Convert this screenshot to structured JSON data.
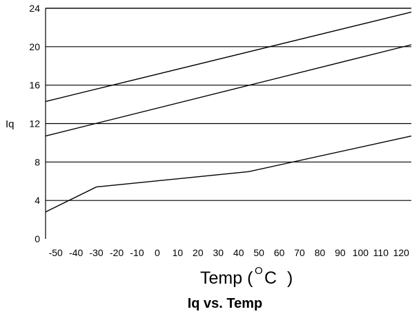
{
  "chart_data": {
    "type": "line",
    "title": "Iq vs. Temp",
    "xlabel": "Temp ( °C )",
    "ylabel": "Iq",
    "xlim": [
      -55,
      125
    ],
    "ylim": [
      0,
      24
    ],
    "x_ticks": [
      "-50",
      "-40",
      "-30",
      "-20",
      "-10",
      "0",
      "10",
      "20",
      "30",
      "40",
      "50",
      "60",
      "70",
      "80",
      "90",
      "100",
      "110",
      "120"
    ],
    "y_ticks": [
      "0",
      "4",
      "8",
      "12",
      "16",
      "20",
      "24"
    ],
    "grid": "horizontal",
    "series": [
      {
        "x": [
          -55,
          125
        ],
        "y": [
          14.3,
          23.6
        ]
      },
      {
        "x": [
          -55,
          125
        ],
        "y": [
          10.7,
          20.2
        ]
      },
      {
        "x": [
          -55,
          -30,
          45,
          125
        ],
        "y": [
          2.8,
          5.4,
          7.0,
          10.7
        ]
      }
    ]
  },
  "labels": {
    "temp_prefix": "Temp (",
    "degree_symbol": "O",
    "unit": "C",
    "close_paren": ")"
  },
  "colors": {
    "line": "#000000",
    "grid": "#000000",
    "background": "#ffffff"
  }
}
